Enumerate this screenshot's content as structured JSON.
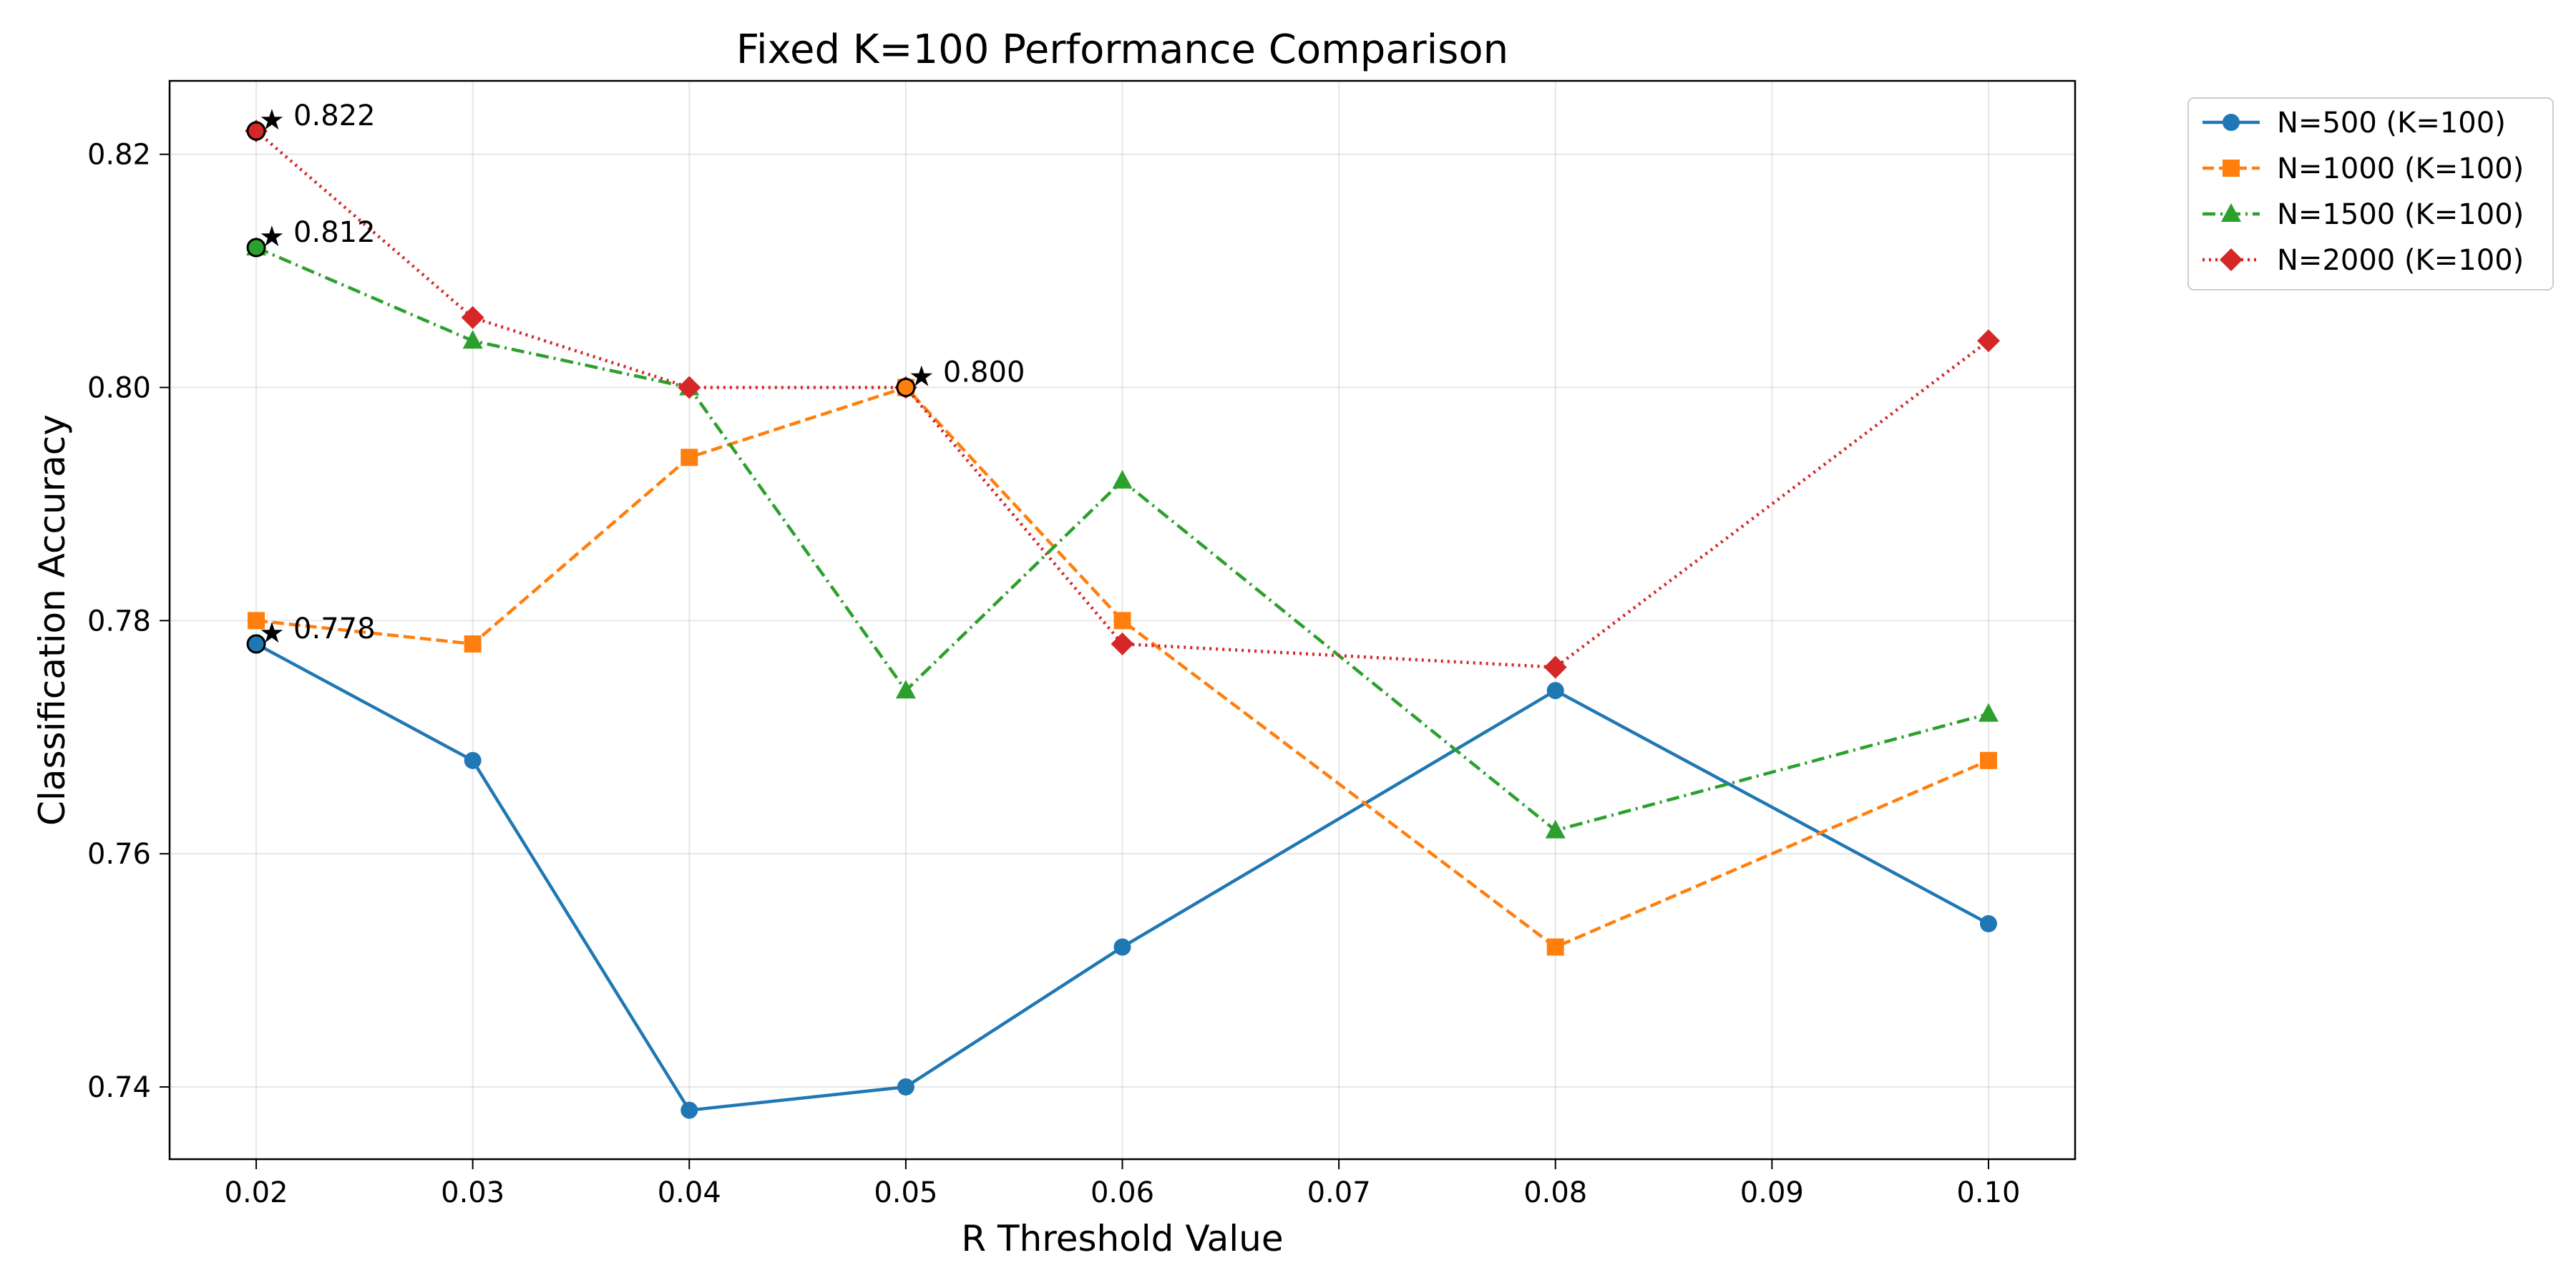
{
  "chart_data": {
    "type": "line",
    "title": "Fixed K=100 Performance Comparison",
    "xlabel": "R Threshold Value",
    "ylabel": "Classification Accuracy",
    "xlim": [
      0.016,
      0.104
    ],
    "ylim": [
      0.7338,
      0.8263
    ],
    "xticks": [
      0.02,
      0.03,
      0.04,
      0.05,
      0.06,
      0.07,
      0.08,
      0.09,
      0.1
    ],
    "xtick_labels": [
      "0.02",
      "0.03",
      "0.04",
      "0.05",
      "0.06",
      "0.07",
      "0.08",
      "0.09",
      "0.10"
    ],
    "yticks": [
      0.74,
      0.76,
      0.78,
      0.8,
      0.82
    ],
    "ytick_labels": [
      "0.74",
      "0.76",
      "0.78",
      "0.80",
      "0.82"
    ],
    "grid": true,
    "legend_position": "outside-top-right",
    "x": [
      0.02,
      0.03,
      0.04,
      0.05,
      0.06,
      0.08,
      0.1
    ],
    "series": [
      {
        "name": "N=500 (K=100)",
        "color": "#1f77b4",
        "dash": "solid",
        "marker": "circle",
        "values": [
          0.778,
          0.768,
          0.738,
          0.74,
          0.752,
          0.774,
          0.754
        ]
      },
      {
        "name": "N=1000 (K=100)",
        "color": "#ff7f0e",
        "dash": "dashed",
        "marker": "square",
        "values": [
          0.78,
          0.778,
          0.794,
          0.8,
          0.78,
          0.752,
          0.768
        ]
      },
      {
        "name": "N=1500 (K=100)",
        "color": "#2ca02c",
        "dash": "dashdot",
        "marker": "triangle",
        "values": [
          0.812,
          0.804,
          0.8,
          0.774,
          0.792,
          0.762,
          0.772
        ]
      },
      {
        "name": "N=2000 (K=100)",
        "color": "#d62728",
        "dash": "dotted",
        "marker": "diamond",
        "values": [
          0.822,
          0.806,
          0.8,
          0.8,
          0.778,
          0.776,
          0.804
        ]
      }
    ],
    "annotations": [
      {
        "series": 0,
        "x": 0.02,
        "y": 0.778,
        "text": "0.778"
      },
      {
        "series": 1,
        "x": 0.05,
        "y": 0.8,
        "text": "0.800"
      },
      {
        "series": 2,
        "x": 0.02,
        "y": 0.812,
        "text": "0.812"
      },
      {
        "series": 3,
        "x": 0.02,
        "y": 0.822,
        "text": "0.822"
      }
    ]
  }
}
